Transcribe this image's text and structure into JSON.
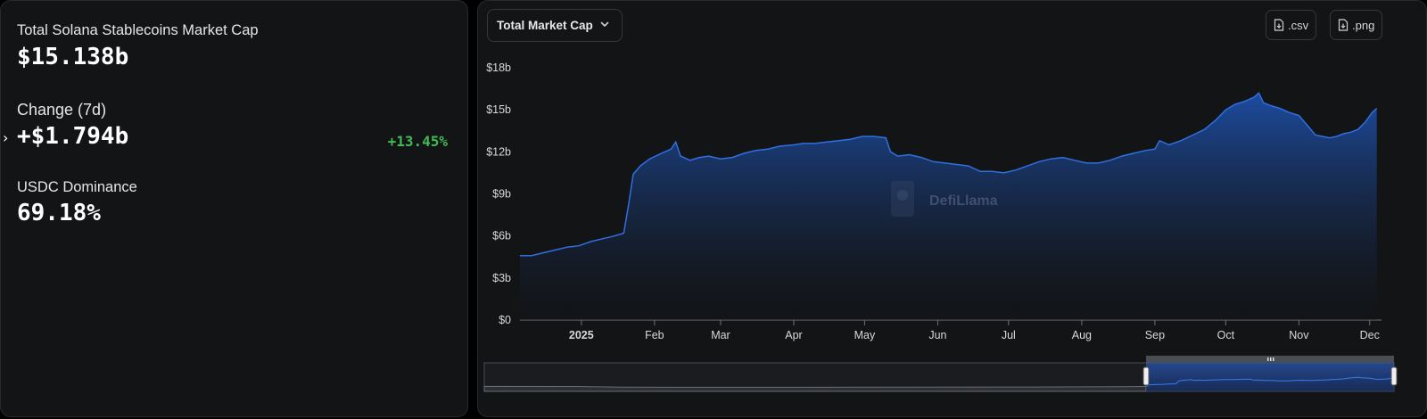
{
  "summary": {
    "market_cap_label": "Total Solana Stablecoins Market Cap",
    "market_cap_value": "$15.138b",
    "change_label": "Change (7d)",
    "change_value": "+$1.794b",
    "change_pct": "+13.45%",
    "dominance_label": "USDC Dominance",
    "dominance_value": "69.18%"
  },
  "toolbar": {
    "metric_select": "Total Market Cap",
    "csv_label": ".csv",
    "png_label": ".png"
  },
  "watermark": "DefiLlama",
  "colors": {
    "line": "#2f6fe0",
    "area_top": "#1d4fa8",
    "positive": "#3fbb54",
    "panel": "#131416"
  },
  "chart_data": {
    "type": "area",
    "x_unit": "days since 2024-12-06",
    "xlim": [
      0,
      365
    ],
    "ylim": [
      0,
      18
    ],
    "y_ticks": [
      {
        "value": 0,
        "label": "$0"
      },
      {
        "value": 3,
        "label": "$3b"
      },
      {
        "value": 6,
        "label": "$6b"
      },
      {
        "value": 9,
        "label": "$9b"
      },
      {
        "value": 12,
        "label": "$12b"
      },
      {
        "value": 15,
        "label": "$15b"
      },
      {
        "value": 18,
        "label": "$18b"
      }
    ],
    "x_ticks": [
      {
        "value": 26,
        "label": "2025",
        "bold": true
      },
      {
        "value": 57,
        "label": "Feb"
      },
      {
        "value": 85,
        "label": "Mar"
      },
      {
        "value": 116,
        "label": "Apr"
      },
      {
        "value": 146,
        "label": "May"
      },
      {
        "value": 177,
        "label": "Jun"
      },
      {
        "value": 207,
        "label": "Jul"
      },
      {
        "value": 238,
        "label": "Aug"
      },
      {
        "value": 269,
        "label": "Sep"
      },
      {
        "value": 299,
        "label": "Oct"
      },
      {
        "value": 330,
        "label": "Nov"
      },
      {
        "value": 360,
        "label": "Dec"
      }
    ],
    "grid": false,
    "series": [
      {
        "values": [
          [
            0,
            4.6
          ],
          [
            5,
            4.6
          ],
          [
            10,
            4.8
          ],
          [
            15,
            5.0
          ],
          [
            20,
            5.2
          ],
          [
            25,
            5.3
          ],
          [
            30,
            5.6
          ],
          [
            35,
            5.8
          ],
          [
            40,
            6.0
          ],
          [
            44,
            6.2
          ],
          [
            46,
            8.2
          ],
          [
            48,
            10.4
          ],
          [
            51,
            11.0
          ],
          [
            55,
            11.5
          ],
          [
            60,
            11.9
          ],
          [
            64,
            12.2
          ],
          [
            66,
            12.7
          ],
          [
            68,
            11.7
          ],
          [
            72,
            11.4
          ],
          [
            76,
            11.6
          ],
          [
            80,
            11.7
          ],
          [
            85,
            11.5
          ],
          [
            90,
            11.6
          ],
          [
            95,
            11.9
          ],
          [
            100,
            12.1
          ],
          [
            105,
            12.2
          ],
          [
            110,
            12.4
          ],
          [
            116,
            12.5
          ],
          [
            120,
            12.6
          ],
          [
            125,
            12.6
          ],
          [
            130,
            12.7
          ],
          [
            135,
            12.8
          ],
          [
            140,
            12.9
          ],
          [
            145,
            13.1
          ],
          [
            150,
            13.1
          ],
          [
            155,
            13.0
          ],
          [
            157,
            12.0
          ],
          [
            160,
            11.7
          ],
          [
            165,
            11.8
          ],
          [
            170,
            11.6
          ],
          [
            175,
            11.3
          ],
          [
            180,
            11.2
          ],
          [
            185,
            11.1
          ],
          [
            190,
            11.0
          ],
          [
            195,
            10.6
          ],
          [
            200,
            10.6
          ],
          [
            205,
            10.5
          ],
          [
            210,
            10.7
          ],
          [
            215,
            11.0
          ],
          [
            220,
            11.3
          ],
          [
            225,
            11.5
          ],
          [
            230,
            11.6
          ],
          [
            235,
            11.4
          ],
          [
            240,
            11.2
          ],
          [
            245,
            11.2
          ],
          [
            250,
            11.4
          ],
          [
            255,
            11.7
          ],
          [
            260,
            11.9
          ],
          [
            265,
            12.1
          ],
          [
            269,
            12.2
          ],
          [
            271,
            12.8
          ],
          [
            275,
            12.5
          ],
          [
            280,
            12.8
          ],
          [
            285,
            13.2
          ],
          [
            290,
            13.6
          ],
          [
            295,
            14.3
          ],
          [
            299,
            15.0
          ],
          [
            303,
            15.4
          ],
          [
            307,
            15.6
          ],
          [
            311,
            15.9
          ],
          [
            313,
            16.2
          ],
          [
            315,
            15.5
          ],
          [
            318,
            15.3
          ],
          [
            322,
            15.1
          ],
          [
            326,
            14.8
          ],
          [
            330,
            14.6
          ],
          [
            334,
            13.8
          ],
          [
            337,
            13.2
          ],
          [
            340,
            13.1
          ],
          [
            343,
            13.0
          ],
          [
            346,
            13.1
          ],
          [
            349,
            13.3
          ],
          [
            352,
            13.4
          ],
          [
            355,
            13.6
          ],
          [
            358,
            14.1
          ],
          [
            361,
            14.8
          ],
          [
            363,
            15.1
          ]
        ]
      }
    ]
  }
}
